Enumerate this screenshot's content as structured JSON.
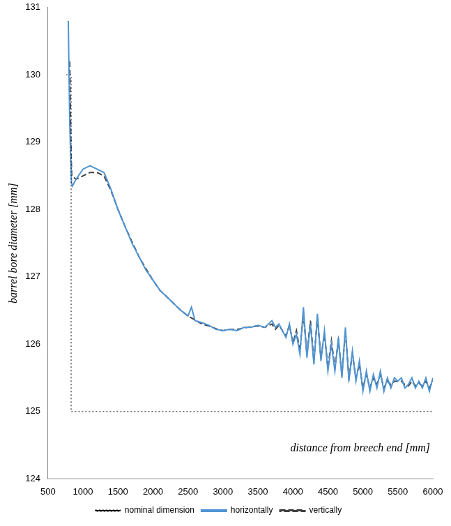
{
  "chart_data": {
    "type": "line",
    "y_label": "barrel bore diameter [mm]",
    "x_label": "distance from breech end [mm]",
    "xlim": [
      500,
      6000
    ],
    "xticks": [
      500,
      1000,
      1500,
      2000,
      2500,
      3000,
      3500,
      4000,
      4500,
      5000,
      5500,
      6000
    ],
    "ylim": [
      124,
      131
    ],
    "yticks": [
      124,
      125,
      126,
      127,
      128,
      129,
      130,
      131
    ],
    "grid": false,
    "legend": "bottom",
    "series": [
      {
        "name": "nominal dimension",
        "color": "#000000",
        "line_style": "dotted",
        "x": [
          760,
          830,
          830,
          6000
        ],
        "values": [
          130,
          130,
          125,
          125
        ]
      },
      {
        "name": "horizontally",
        "color": "#4f94d4",
        "line_style": "solid",
        "x": [
          790,
          800,
          810,
          820,
          835,
          850,
          900,
          1000,
          1100,
          1200,
          1300,
          1400,
          1500,
          1600,
          1700,
          1800,
          1900,
          2000,
          2100,
          2200,
          2300,
          2400,
          2500,
          2550,
          2600,
          2700,
          2800,
          2900,
          3000,
          3100,
          3200,
          3300,
          3400,
          3500,
          3600,
          3700,
          3750,
          3800,
          3850,
          3900,
          3950,
          4000,
          4050,
          4100,
          4150,
          4200,
          4250,
          4300,
          4350,
          4400,
          4450,
          4500,
          4550,
          4600,
          4650,
          4700,
          4750,
          4800,
          4850,
          4900,
          4950,
          5000,
          5050,
          5100,
          5150,
          5200,
          5250,
          5300,
          5350,
          5400,
          5450,
          5500,
          5550,
          5600,
          5650,
          5700,
          5750,
          5800,
          5850,
          5900,
          5950,
          6000
        ],
        "values": [
          130.8,
          130.0,
          129.3,
          128.9,
          128.4,
          128.35,
          128.45,
          128.6,
          128.65,
          128.6,
          128.55,
          128.3,
          128.0,
          127.75,
          127.5,
          127.3,
          127.1,
          126.95,
          126.8,
          126.7,
          126.6,
          126.5,
          126.42,
          126.55,
          126.35,
          126.32,
          126.28,
          126.22,
          126.2,
          126.22,
          126.2,
          126.25,
          126.25,
          126.28,
          126.25,
          126.35,
          126.25,
          126.3,
          126.2,
          126.1,
          126.3,
          126.0,
          126.15,
          125.85,
          126.55,
          125.8,
          126.3,
          125.7,
          126.45,
          125.75,
          126.2,
          125.6,
          126.0,
          125.6,
          126.1,
          125.5,
          126.25,
          125.45,
          125.9,
          125.45,
          125.75,
          125.3,
          125.6,
          125.3,
          125.55,
          125.35,
          125.6,
          125.3,
          125.5,
          125.35,
          125.5,
          125.45,
          125.5,
          125.35,
          125.4,
          125.5,
          125.35,
          125.45,
          125.35,
          125.5,
          125.3,
          125.5
        ]
      },
      {
        "name": "vertically",
        "color": "#404040",
        "line_style": "dashed",
        "x": [
          810,
          820,
          830,
          840,
          900,
          1000,
          1100,
          1200,
          1300,
          1400,
          1500,
          1600,
          1700,
          1800,
          1900,
          2000,
          2100,
          2200,
          2300,
          2400,
          2500,
          2600,
          2700,
          2800,
          2900,
          3000,
          3100,
          3200,
          3300,
          3400,
          3500,
          3600,
          3700,
          3750,
          3800,
          3850,
          3900,
          3950,
          4000,
          4050,
          4100,
          4150,
          4200,
          4250,
          4300,
          4350,
          4400,
          4450,
          4500,
          4550,
          4600,
          4650,
          4700,
          4750,
          4800,
          4850,
          4900,
          4950,
          5000,
          5050,
          5100,
          5150,
          5200,
          5250,
          5300,
          5350,
          5400,
          5450,
          5500,
          5550,
          5600,
          5650,
          5700,
          5750,
          5800,
          5850,
          5900,
          5950,
          6000
        ],
        "values": [
          130.2,
          129.5,
          128.8,
          128.5,
          128.45,
          128.5,
          128.55,
          128.55,
          128.5,
          128.28,
          128.0,
          127.75,
          127.52,
          127.3,
          127.12,
          126.95,
          126.8,
          126.7,
          126.6,
          126.5,
          126.42,
          126.36,
          126.3,
          126.27,
          126.23,
          126.2,
          126.22,
          126.22,
          126.24,
          126.26,
          126.27,
          126.25,
          126.3,
          126.22,
          126.28,
          126.2,
          126.12,
          126.28,
          126.02,
          126.2,
          125.9,
          126.45,
          125.85,
          126.35,
          125.75,
          126.4,
          125.8,
          126.15,
          125.65,
          126.05,
          125.65,
          126.05,
          125.55,
          126.2,
          125.5,
          125.85,
          125.5,
          125.7,
          125.35,
          125.55,
          125.35,
          125.5,
          125.4,
          125.55,
          125.35,
          125.45,
          125.4,
          125.45,
          125.45,
          125.45,
          125.4,
          125.38,
          125.45,
          125.38,
          125.42,
          125.38,
          125.45,
          125.35,
          125.45
        ]
      }
    ]
  }
}
